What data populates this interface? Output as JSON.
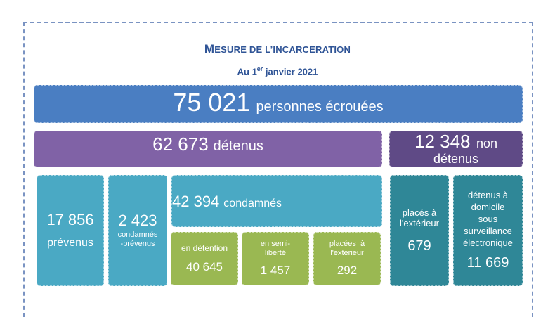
{
  "header": {
    "title_initial": "M",
    "title_rest": "ESURE DE L’INCARCERATION",
    "date_prefix": "Au 1",
    "date_sup": "er",
    "date_suffix": " janvier 2021"
  },
  "total": {
    "value": "75 021",
    "label": "personnes écrouées"
  },
  "detenus": {
    "value": "62 673",
    "label": "détenus"
  },
  "non_detenus": {
    "value": "12 348",
    "label_a": "non",
    "label_b": "détenus"
  },
  "prevenus": {
    "value": "17 856",
    "label": "prévenus"
  },
  "condamnes_prevenus": {
    "value": "2 423",
    "label_a": "condamnés",
    "label_b": "-prévenus"
  },
  "condamnes": {
    "value": "42 394",
    "label": "condamnés"
  },
  "en_detention": {
    "label": "en détention",
    "value": "40 645"
  },
  "semi_liberte": {
    "label_a": "en semi-",
    "label_b": "liberté",
    "value": "1 457"
  },
  "placees_exterieur": {
    "label_a": "placées  à",
    "label_b": "l'exterieur",
    "value": "292"
  },
  "places_exterieur": {
    "label_a": "placés à",
    "label_b": "l'extérieur",
    "value": "679"
  },
  "surveillance": {
    "label_a": "détenus à",
    "label_b": "domicile",
    "label_c": "sous",
    "label_d": "surveillance",
    "label_e": "électronique",
    "value": "11 669"
  },
  "colors": {
    "total": "#4a7ec2",
    "detenus": "#8062a6",
    "non_detenus": "#5f4a86",
    "teal": "#4aa9c4",
    "teal_dark": "#2f8797",
    "green": "#9ab852",
    "title": "#2f5496"
  }
}
